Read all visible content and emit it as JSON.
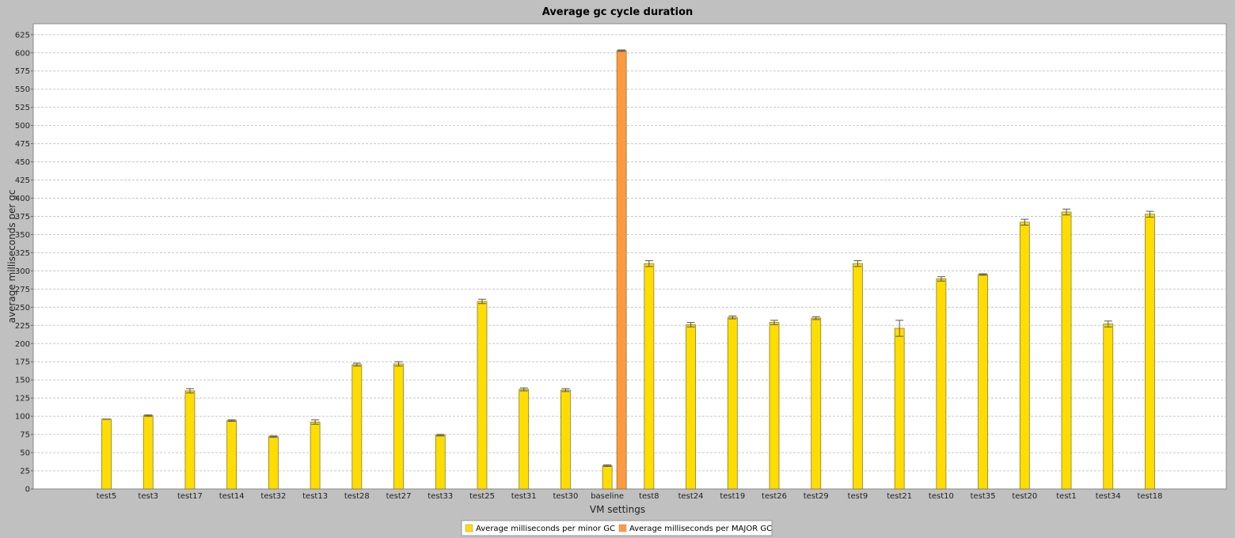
{
  "chart_data": {
    "type": "bar",
    "title": "Average gc cycle duration",
    "xlabel": "VM settings",
    "ylabel": "average milliseconds per gc",
    "ylim": [
      0,
      640
    ],
    "yticks": [
      0,
      25,
      50,
      75,
      100,
      125,
      150,
      175,
      200,
      225,
      250,
      275,
      300,
      325,
      350,
      375,
      400,
      425,
      450,
      475,
      500,
      525,
      550,
      575,
      600,
      625
    ],
    "grid": true,
    "legend_position": "bottom",
    "categories": [
      "test5",
      "test3",
      "test17",
      "test14",
      "test32",
      "test13",
      "test28",
      "test27",
      "test33",
      "test25",
      "test31",
      "test30",
      "baseline",
      "test8",
      "test24",
      "test19",
      "test26",
      "test29",
      "test9",
      "test21",
      "test10",
      "test35",
      "test20",
      "test1",
      "test34",
      "test18"
    ],
    "series": [
      {
        "name": "Average milliseconds per minor GC",
        "color": "#ffdd00",
        "values": [
          96,
          101,
          135,
          94,
          72,
          92,
          171,
          172,
          74,
          258,
          137,
          136,
          32,
          310,
          226,
          236,
          229,
          235,
          310,
          221,
          289,
          295,
          367,
          381,
          227,
          378
        ],
        "error": [
          0,
          1,
          3,
          1,
          1,
          3,
          2,
          3,
          1,
          3,
          2,
          2,
          1,
          4,
          3,
          2,
          3,
          2,
          4,
          11,
          3,
          1,
          4,
          4,
          4,
          4
        ]
      },
      {
        "name": "Average milliseconds per MAJOR GC",
        "color": "#ff9940",
        "values": [
          null,
          null,
          null,
          null,
          null,
          null,
          null,
          null,
          null,
          null,
          null,
          null,
          603,
          null,
          null,
          null,
          null,
          null,
          null,
          null,
          null,
          null,
          null,
          null,
          null,
          null
        ],
        "error": [
          0,
          0,
          0,
          0,
          0,
          0,
          0,
          0,
          0,
          0,
          0,
          0,
          1,
          0,
          0,
          0,
          0,
          0,
          0,
          0,
          0,
          0,
          0,
          0,
          0,
          0
        ]
      }
    ]
  }
}
